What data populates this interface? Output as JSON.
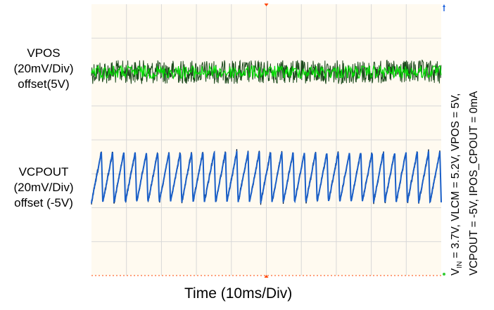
{
  "chart_data": {
    "type": "line",
    "title": "",
    "xlabel": "Time (10ms/Div)",
    "grid": true,
    "x_divisions": 10,
    "y_divisions": 8,
    "x_range_ms": [
      0,
      100
    ],
    "series": [
      {
        "label_lines": [
          "VPOS",
          "(20mV/Div)",
          "offset(5V)"
        ],
        "offset_V": 5,
        "scale_mV_per_div": 20,
        "color": "#00e000",
        "waveform": "noise",
        "ripple_mVpp": 14
      },
      {
        "label_lines": [
          "VCPOUT",
          "(20mV/Div)",
          "offset (-5V)"
        ],
        "offset_V": -5,
        "scale_mV_per_div": 20,
        "color": "#1a5fc8",
        "waveform": "sawtooth",
        "ripple_mVpp": 30,
        "cycles_on_screen": 31
      }
    ],
    "conditions_line1_prefix": "V",
    "conditions_line1_sub": "IN",
    "conditions_line1_rest": " = 3.7V,  VLCM = 5.2V,  VPOS = 5V,",
    "conditions_line2": "VCPOUT = -5V, IPOS_CPOUT = 0mA"
  },
  "colors": {
    "background": "#fffaf0",
    "grid": "#d8d8d8",
    "marker": "#ff4400",
    "cursor": "#2266dd"
  }
}
